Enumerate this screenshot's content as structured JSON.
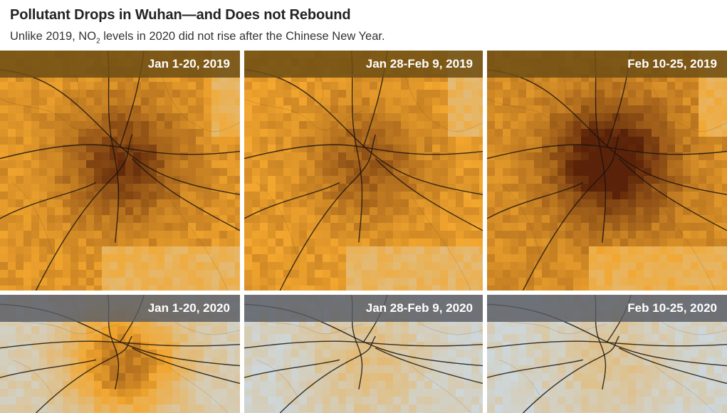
{
  "header": {
    "title": "Pollutant Drops in Wuhan—and Does not Rebound",
    "subtitle_before": "Unlike 2019, NO",
    "subtitle_sub": "2",
    "subtitle_after": " levels in 2020 did not rise after the Chinese New Year."
  },
  "panels": [
    {
      "label": "Jan 1-20, 2019",
      "year": "2019",
      "no2_intensity": 0.65
    },
    {
      "label": "Jan 28-Feb 9, 2019",
      "year": "2019",
      "no2_intensity": 0.45
    },
    {
      "label": "Feb 10-25, 2019",
      "year": "2019",
      "no2_intensity": 0.95
    },
    {
      "label": "Jan 1-20, 2020",
      "year": "2020",
      "no2_intensity": 0.45
    },
    {
      "label": "Jan 28-Feb 9, 2020",
      "year": "2020",
      "no2_intensity": 0.15
    },
    {
      "label": "Feb 10-25, 2020",
      "year": "2020",
      "no2_intensity": 0.12
    }
  ],
  "colors": {
    "low_no2": "#c9dcee",
    "mid_no2": "#f2a62e",
    "high_no2": "#5a2208",
    "header_2019": "#6e4e14",
    "header_2020": "#585c64"
  }
}
